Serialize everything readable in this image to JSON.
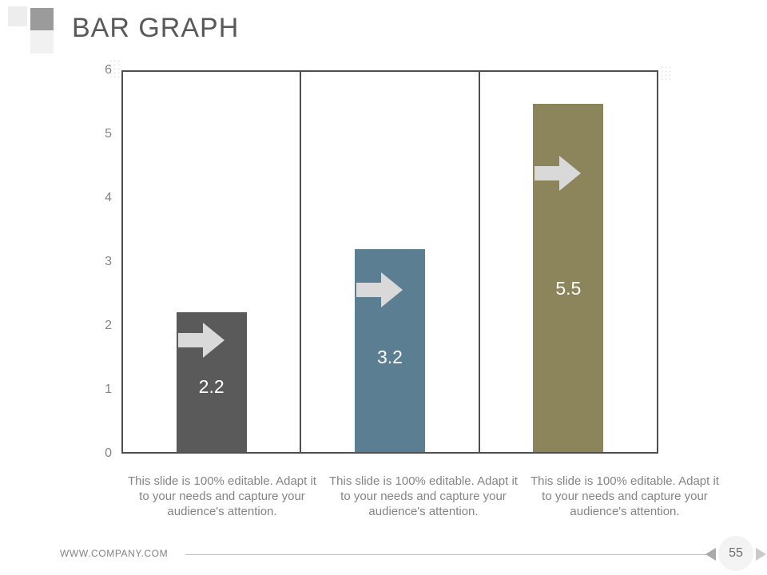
{
  "slide": {
    "title": "BAR GRAPH",
    "footer": {
      "website": "WWW.COMPANY.COM",
      "page_number": "55"
    }
  },
  "chart_data": {
    "type": "bar",
    "title": "",
    "xlabel": "",
    "ylabel": "",
    "ylim": [
      0,
      6
    ],
    "y_ticks": [
      0,
      1,
      2,
      3,
      4,
      5,
      6
    ],
    "grid": "off",
    "values": [
      2.2,
      3.2,
      5.5
    ],
    "labels": [
      "2.2",
      "3.2",
      "5.5"
    ],
    "bar_colors": [
      "#5a5a5a",
      "#5b7e92",
      "#8c845a"
    ],
    "arrow_color": "#d9d9d9",
    "captions": [
      "This slide is 100% editable. Adapt it to your needs and capture your audience's attention.",
      "This slide is 100% editable. Adapt it to your needs and capture your audience's attention.",
      "This slide is 100% editable. Adapt it to your needs and capture your audience's attention."
    ]
  }
}
